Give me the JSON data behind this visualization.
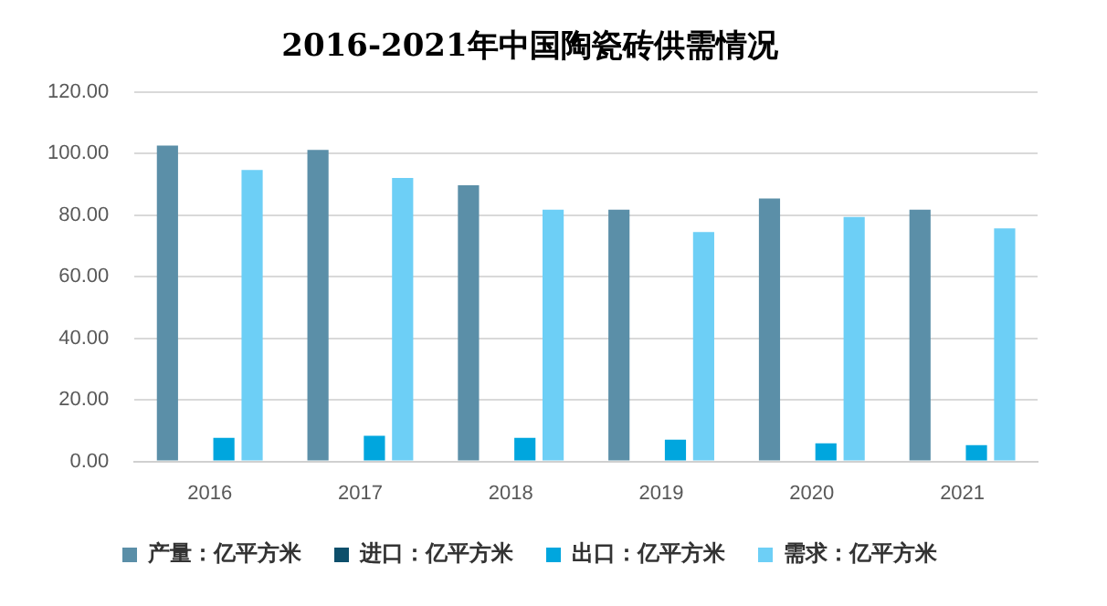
{
  "chart_data": {
    "type": "bar",
    "title": "2016-2021年中国陶瓷砖供需情况",
    "categories": [
      "2016",
      "2017",
      "2018",
      "2019",
      "2020",
      "2021"
    ],
    "series": [
      {
        "name": "产量：亿平方米",
        "color": "#5b8fa8",
        "values": [
          102.6,
          101.2,
          89.7,
          81.8,
          85.4,
          81.8
        ]
      },
      {
        "name": "进口：亿平方米",
        "color": "#0d4f6b",
        "values": [
          0,
          0,
          0,
          0,
          0,
          0
        ]
      },
      {
        "name": "出口：亿平方米",
        "color": "#00a6de",
        "values": [
          7.7,
          8.3,
          7.7,
          7.1,
          5.9,
          5.3
        ]
      },
      {
        "name": "需求：亿平方米",
        "color": "#6dcff6",
        "values": [
          94.7,
          92.1,
          81.8,
          74.5,
          79.4,
          75.7
        ]
      }
    ],
    "ylim": [
      0,
      120
    ],
    "yticks": [
      {
        "value": 0,
        "label": "0.00"
      },
      {
        "value": 20,
        "label": "20.00"
      },
      {
        "value": 40,
        "label": "40.00"
      },
      {
        "value": 60,
        "label": "60.00"
      },
      {
        "value": 80,
        "label": "80.00"
      },
      {
        "value": 100,
        "label": "100.00"
      },
      {
        "value": 120,
        "label": "120.00"
      }
    ],
    "grid": "y",
    "legend": "bottom"
  }
}
